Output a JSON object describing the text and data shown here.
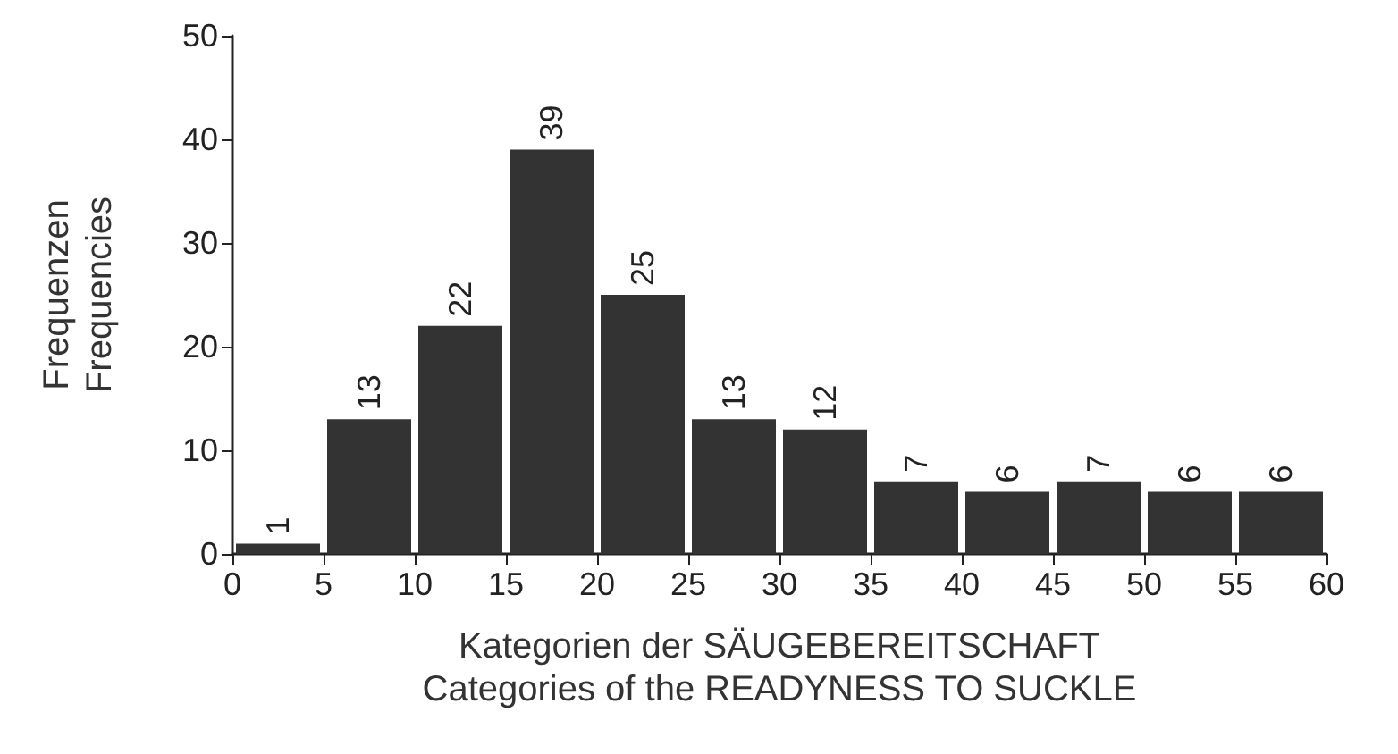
{
  "chart_data": {
    "type": "histogram",
    "xlabel": "Kategorien der SÄUGEBEREITSCHAFT\nCategories of the READYNESS TO SUCKLE",
    "ylabel": "Frequenzen\nFrequencies",
    "bins": [
      0,
      5,
      10,
      15,
      20,
      25,
      30,
      35,
      40,
      45,
      50,
      55,
      60
    ],
    "values": [
      1,
      13,
      22,
      39,
      25,
      13,
      12,
      7,
      6,
      7,
      6,
      6
    ],
    "color": "#333333",
    "xlim": [
      0,
      60
    ],
    "xticks": [
      0,
      5,
      10,
      15,
      20,
      25,
      30,
      35,
      40,
      45,
      50,
      55,
      60
    ],
    "ylim": [
      0,
      50
    ],
    "yticks": [
      0,
      10,
      20,
      30,
      40,
      50
    ],
    "data_labels": true,
    "grid": false
  }
}
